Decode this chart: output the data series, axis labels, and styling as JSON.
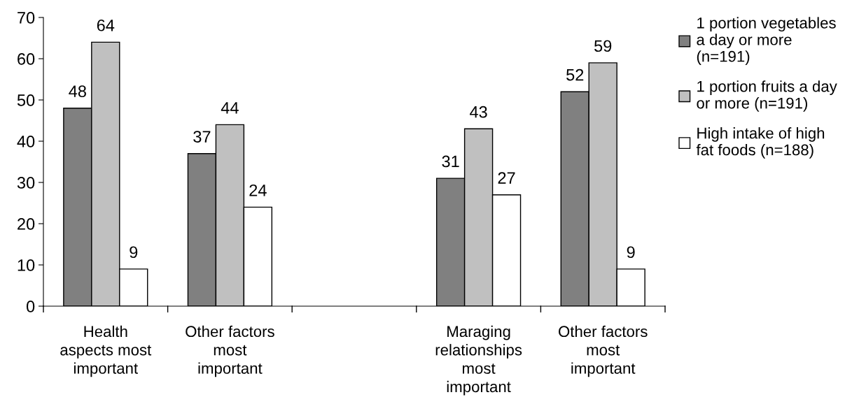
{
  "chart_data": {
    "type": "bar",
    "categories": [
      "Health\naspects most\nimportant",
      "Other factors\nmost\nimportant",
      null,
      "Maraging\nrelationships\nmost\nimportant",
      "Other factors\nmost\nimportant"
    ],
    "series": [
      {
        "name": "1 portion vegetables\na day or more\n(n=191)",
        "color": "#808080",
        "values": [
          48,
          37,
          null,
          31,
          52
        ]
      },
      {
        "name": "1 portion fruits a day\nor more (n=191)",
        "color": "#c0c0c0",
        "values": [
          64,
          44,
          null,
          43,
          59
        ]
      },
      {
        "name": "High intake of high\nfat foods (n=188)",
        "color": "#ffffff",
        "values": [
          9,
          24,
          null,
          27,
          9
        ]
      }
    ],
    "ylim": [
      0,
      70
    ],
    "yticks": [
      0,
      10,
      20,
      30,
      40,
      50,
      60,
      70
    ],
    "data_labels": true,
    "grid": false,
    "legend": "top right"
  }
}
